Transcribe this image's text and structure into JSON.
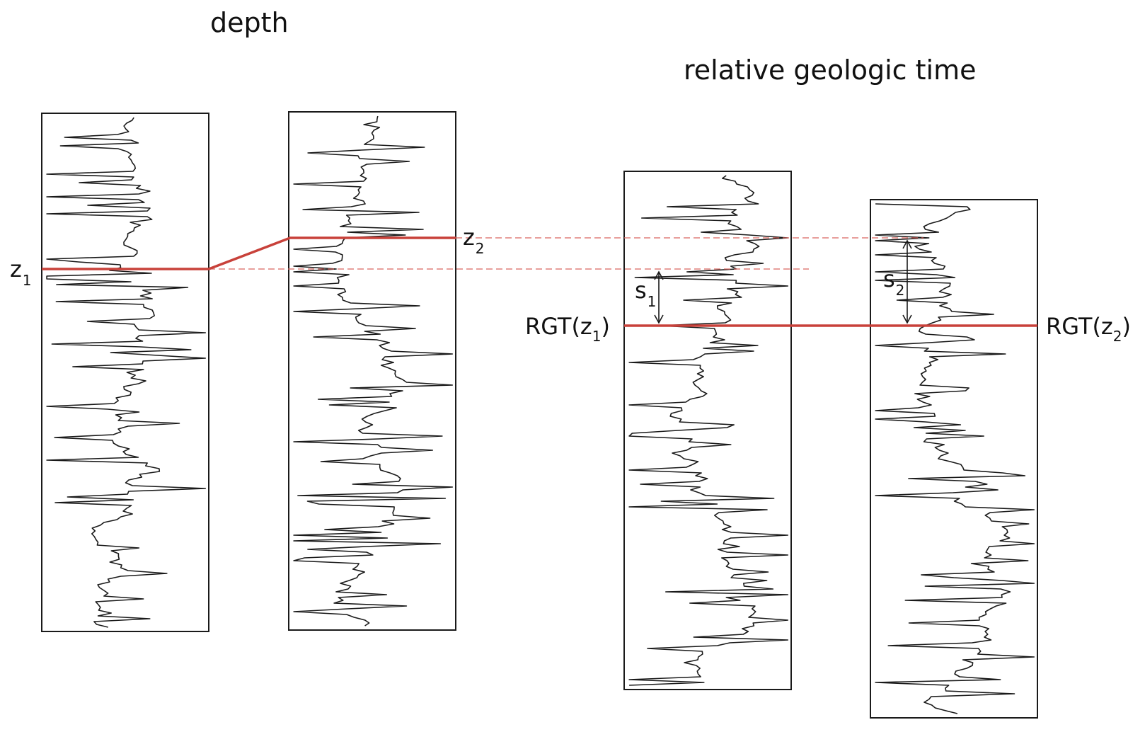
{
  "titles": {
    "depth": "depth",
    "relative_geologic_time": "relative geologic time"
  },
  "labels": {
    "z1": {
      "main": "z",
      "sub": "1"
    },
    "z2": {
      "main": "z",
      "sub": "2"
    },
    "s1": {
      "main": "s",
      "sub": "1"
    },
    "s2": {
      "main": "s",
      "sub": "2"
    },
    "rgt_z1": {
      "prefix": "RGT(z",
      "sub": "1",
      "suffix": ")"
    },
    "rgt_z2": {
      "prefix": "RGT(z",
      "sub": "2",
      "suffix": ")"
    }
  },
  "colors": {
    "horizon": "#c8413a",
    "dashed": "#d9665f",
    "trace": "#1a1a1a"
  },
  "panels": [
    {
      "id": "depth-well-1",
      "group": "depth",
      "seed": 11
    },
    {
      "id": "depth-well-2",
      "group": "depth",
      "seed": 23
    },
    {
      "id": "rgt-well-1",
      "group": "relative geologic time",
      "seed": 37
    },
    {
      "id": "rgt-well-2",
      "group": "relative geologic time",
      "seed": 53
    }
  ]
}
